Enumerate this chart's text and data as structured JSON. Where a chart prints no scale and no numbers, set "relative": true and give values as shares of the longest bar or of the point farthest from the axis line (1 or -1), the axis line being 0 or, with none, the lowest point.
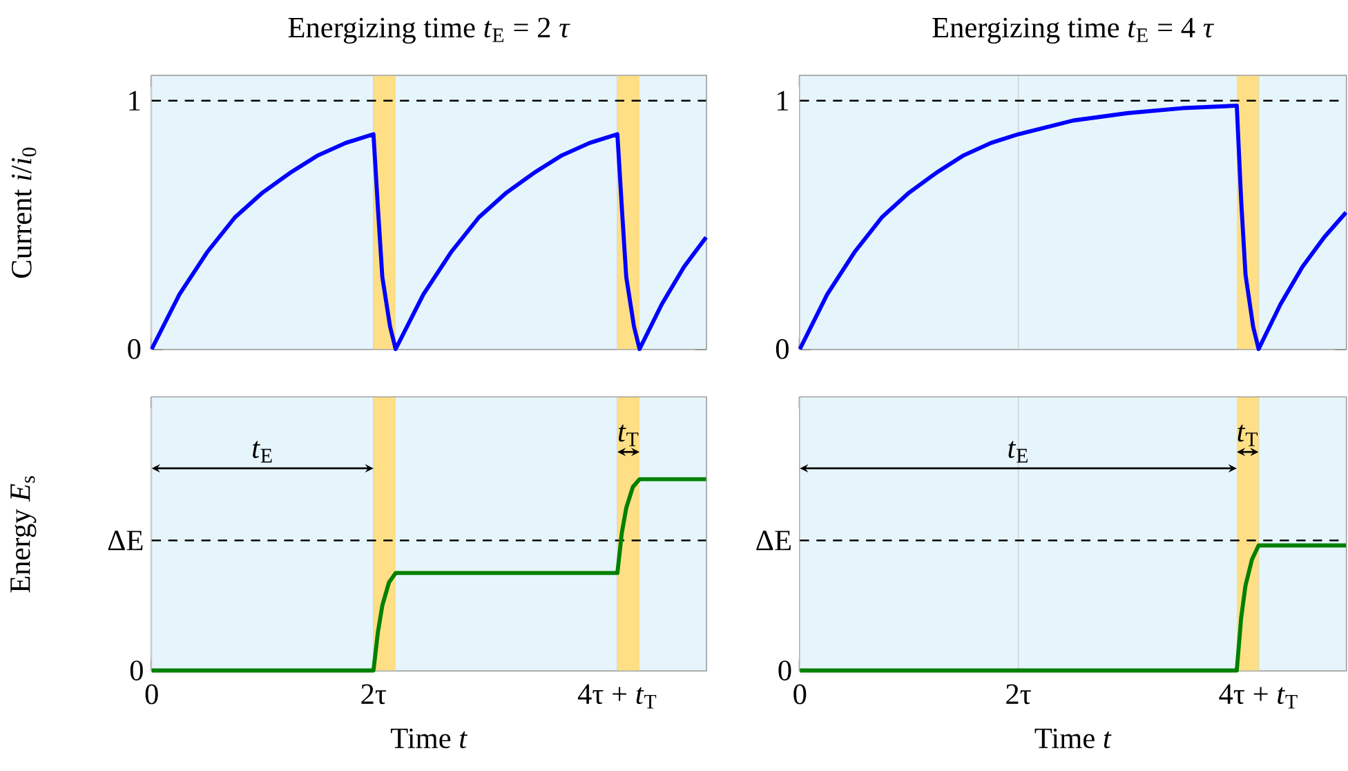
{
  "chart_data": [
    {
      "type": "line",
      "title": "Energizing time *t*$_{E}$ = 2 *τ*",
      "ylabel": "Current *i*/*i*$_{0}$",
      "xlim": [
        0,
        5
      ],
      "xticks": [
        {
          "value": 0,
          "label": null
        },
        {
          "value": 2,
          "label": null
        },
        {
          "value": 4.2,
          "label": null
        }
      ],
      "ylim": [
        0,
        1.1
      ],
      "yticks": [
        0,
        1
      ],
      "tick_labels": "y",
      "grid": "x",
      "bands": [
        {
          "axis": "x",
          "from": 2,
          "to": 2.2,
          "color": "#fedf85"
        },
        {
          "axis": "x",
          "from": 4.2,
          "to": 4.4,
          "color": "#fedf85"
        }
      ],
      "ref_lines": [
        {
          "axis": "y",
          "value": 1,
          "line_style": "dashed",
          "color": "#000000"
        }
      ],
      "series": [
        {
          "color": "#0000ff",
          "x": [
            0,
            0.25,
            0.5,
            0.75,
            1,
            1.25,
            1.5,
            1.75,
            2,
            2.04,
            2.08,
            2.15,
            2.2,
            2.45,
            2.7,
            2.95,
            3.2,
            3.45,
            3.7,
            3.95,
            4.2,
            4.24,
            4.28,
            4.35,
            4.4,
            4.6,
            4.8,
            5
          ],
          "values": [
            0,
            0.22,
            0.39,
            0.53,
            0.63,
            0.71,
            0.78,
            0.83,
            0.865,
            0.57,
            0.29,
            0.09,
            0,
            0.22,
            0.39,
            0.53,
            0.63,
            0.71,
            0.78,
            0.83,
            0.865,
            0.57,
            0.29,
            0.09,
            0,
            0.18,
            0.33,
            0.45
          ]
        }
      ]
    },
    {
      "type": "line",
      "title": "Energizing time *t*$_{E}$ = 4 *τ*",
      "xlim": [
        0,
        5
      ],
      "xticks": [
        {
          "value": 0,
          "label": null
        },
        {
          "value": 2,
          "label": null
        },
        {
          "value": 4.2,
          "label": null
        }
      ],
      "ylim": [
        0,
        1.1
      ],
      "yticks": [
        0,
        1
      ],
      "tick_labels": "y",
      "grid": "x",
      "bands": [
        {
          "axis": "x",
          "from": 4,
          "to": 4.2,
          "color": "#fedf85"
        }
      ],
      "ref_lines": [
        {
          "axis": "y",
          "value": 1,
          "line_style": "dashed",
          "color": "#000000"
        }
      ],
      "series": [
        {
          "color": "#0000ff",
          "x": [
            0,
            0.25,
            0.5,
            0.75,
            1,
            1.25,
            1.5,
            1.75,
            2,
            2.5,
            3,
            3.5,
            4,
            4.04,
            4.08,
            4.15,
            4.2,
            4.4,
            4.6,
            4.8,
            5
          ],
          "values": [
            0,
            0.22,
            0.39,
            0.53,
            0.63,
            0.71,
            0.78,
            0.83,
            0.865,
            0.92,
            0.95,
            0.97,
            0.98,
            0.6,
            0.3,
            0.09,
            0,
            0.18,
            0.33,
            0.45,
            0.55
          ]
        }
      ]
    },
    {
      "type": "line",
      "relative": true,
      "xlabel": "Time *t*",
      "ylabel": "Energy *E*$_{s}$",
      "xlim": [
        0,
        5
      ],
      "xticks": [
        0,
        {
          "value": 2,
          "label": "2τ"
        },
        {
          "value": 4.2,
          "label": "4τ + *t*$_{T}$"
        }
      ],
      "grid": "x",
      "bands": [
        {
          "axis": "x",
          "from": 2,
          "to": 2.2,
          "color": "#fedf85"
        },
        {
          "axis": "x",
          "from": 4.2,
          "to": 4.4,
          "color": "#fedf85"
        }
      ],
      "ref_lines": [
        {
          "axis": "y",
          "value": 0.68,
          "label": "ΔE",
          "line_style": "dashed",
          "color": "#000000"
        }
      ],
      "annotations": [
        "*t*$_{E}$",
        "*t*$_{T}$",
        "0"
      ],
      "series": [
        {
          "color": "#008000",
          "x": [
            0,
            2,
            2.04,
            2.08,
            2.14,
            2.2,
            4.2,
            4.24,
            4.28,
            4.34,
            4.4,
            5
          ],
          "values": [
            0,
            0,
            0.2,
            0.34,
            0.46,
            0.51,
            0.51,
            0.72,
            0.85,
            0.96,
            1,
            1
          ]
        }
      ]
    },
    {
      "type": "line",
      "relative": true,
      "xlabel": "Time *t*",
      "xlim": [
        0,
        5
      ],
      "xticks": [
        0,
        {
          "value": 2,
          "label": "2τ"
        },
        {
          "value": 4.2,
          "label": "4τ + *t*$_{T}$"
        }
      ],
      "grid": "x",
      "bands": [
        {
          "axis": "x",
          "from": 4,
          "to": 4.2,
          "color": "#fedf85"
        }
      ],
      "ref_lines": [
        {
          "axis": "y",
          "value": 1.04,
          "label": "ΔE",
          "line_style": "dashed",
          "color": "#000000"
        }
      ],
      "annotations": [
        "*t*$_{E}$",
        "*t*$_{T}$",
        "0"
      ],
      "series": [
        {
          "color": "#008000",
          "x": [
            0,
            4,
            4.04,
            4.08,
            4.14,
            4.2,
            5
          ],
          "values": [
            0,
            0,
            0.42,
            0.68,
            0.89,
            1,
            1
          ]
        }
      ]
    }
  ]
}
